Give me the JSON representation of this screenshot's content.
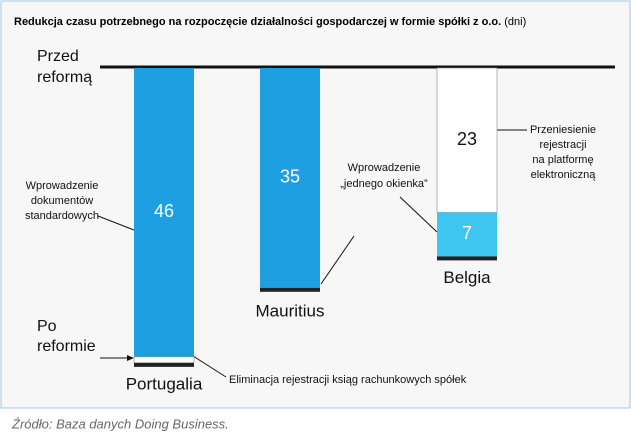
{
  "chart_data": {
    "type": "hanging-bar",
    "title": "Redukcja czasu potrzebnego na rozpoczęcie działalności gospodarczej w formie spółki z o.o.",
    "unit": "(dni)",
    "categories": [
      "Portugalia",
      "Mauritius",
      "Belgia"
    ],
    "series": [
      {
        "color": "#1e9fe2",
        "values": [
          46,
          35,
          null
        ]
      },
      {
        "color": "#ffffff",
        "values": [
          null,
          null,
          23
        ]
      },
      {
        "color": "#3ec6f1",
        "values": [
          null,
          null,
          7
        ]
      }
    ],
    "ylim": [
      0,
      50
    ],
    "before_label": [
      "Przed",
      "reformą"
    ],
    "after_label": [
      "Po",
      "reformie"
    ],
    "annotations": {
      "portugal_left": [
        "Wprowadzenie",
        "dokumentów",
        "standardowych"
      ],
      "portugal_bottom": "Eliminacja rejestracji ksiąg rachunkowych spółek",
      "mauritius": [
        "Wprowadzenie",
        "„jednego okienka”"
      ],
      "belgium": [
        "Przeniesienie",
        "rejestracji",
        "na platformę",
        "elektroniczną"
      ]
    },
    "source": "Źródło: Baza danych Doing Business."
  }
}
